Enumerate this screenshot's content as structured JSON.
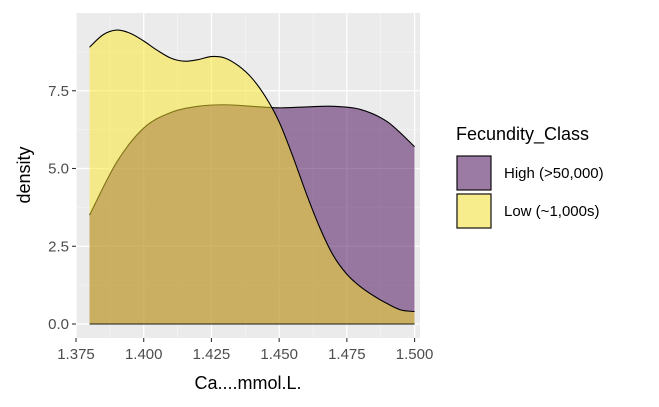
{
  "chart_data": {
    "type": "area",
    "subtype": "density",
    "xlabel": "Ca....mmol.L.",
    "ylabel": "density",
    "xlim": [
      1.375,
      1.502
    ],
    "ylim": [
      -0.45,
      10.0
    ],
    "x_ticks": [
      1.375,
      1.4,
      1.425,
      1.45,
      1.475,
      1.5
    ],
    "x_tick_labels": [
      "1.375",
      "1.400",
      "1.425",
      "1.450",
      "1.475",
      "1.500"
    ],
    "y_ticks": [
      0.0,
      2.5,
      5.0,
      7.5
    ],
    "y_tick_labels": [
      "0.0",
      "2.5",
      "5.0",
      "7.5"
    ],
    "grid": true,
    "background": "#EBEBEB",
    "legend": {
      "title": "Fecundity_Class",
      "position": "right"
    },
    "series": [
      {
        "name": "High (>50,000)",
        "color": "#440154",
        "alpha": 0.5,
        "x": [
          1.38,
          1.39,
          1.4,
          1.41,
          1.42,
          1.43,
          1.44,
          1.45,
          1.46,
          1.47,
          1.48,
          1.49,
          1.5
        ],
        "y": [
          3.5,
          5.2,
          6.3,
          6.8,
          7.0,
          7.05,
          7.0,
          6.95,
          6.98,
          7.0,
          6.9,
          6.5,
          5.7
        ]
      },
      {
        "name": "Low (~1,000s)",
        "color": "#FDE725",
        "alpha": 0.5,
        "x": [
          1.38,
          1.385,
          1.39,
          1.395,
          1.4,
          1.405,
          1.41,
          1.415,
          1.42,
          1.425,
          1.43,
          1.435,
          1.44,
          1.445,
          1.45,
          1.455,
          1.46,
          1.465,
          1.47,
          1.475,
          1.48,
          1.485,
          1.49,
          1.495,
          1.5
        ],
        "y": [
          8.9,
          9.3,
          9.45,
          9.35,
          9.1,
          8.8,
          8.55,
          8.45,
          8.5,
          8.6,
          8.55,
          8.3,
          7.9,
          7.3,
          6.5,
          5.4,
          4.2,
          3.1,
          2.2,
          1.6,
          1.2,
          0.9,
          0.65,
          0.45,
          0.4
        ]
      }
    ]
  }
}
